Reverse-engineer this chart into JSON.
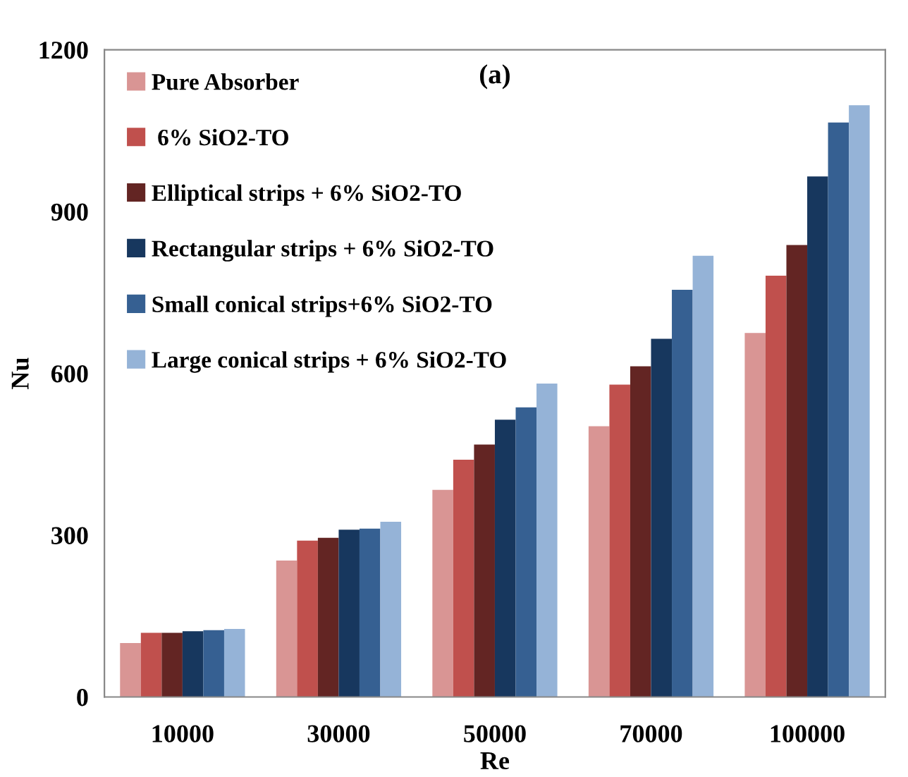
{
  "chart_data": {
    "type": "bar",
    "title": "(a)",
    "xlabel": "Re",
    "ylabel": "Nu",
    "categories": [
      "10000",
      "30000",
      "50000",
      "70000",
      "100000"
    ],
    "series": [
      {
        "name": "Pure Absorber",
        "color": "#d99594",
        "values": [
          100,
          253,
          384,
          502,
          675
        ]
      },
      {
        "name": " 6% SiO2-TO",
        "color": "#c0504d",
        "values": [
          119,
          290,
          440,
          579,
          781
        ]
      },
      {
        "name": "Elliptical strips + 6% SiO2-TO",
        "color": "#632523",
        "values": [
          119,
          295,
          468,
          613,
          838
        ]
      },
      {
        "name": "Rectangular strips + 6% SiO2-TO",
        "color": "#17375e",
        "values": [
          122,
          310,
          514,
          664,
          965
        ]
      },
      {
        "name": "Small conical strips+6% SiO2-TO",
        "color": "#366092",
        "values": [
          124,
          312,
          537,
          755,
          1065
        ]
      },
      {
        "name": "Large conical strips + 6% SiO2-TO",
        "color": "#95b3d7",
        "values": [
          126,
          325,
          581,
          818,
          1097
        ]
      }
    ],
    "ylim": [
      0,
      1200
    ],
    "yticks": [
      0,
      300,
      600,
      900,
      1200
    ],
    "grid": false,
    "legend": "top left"
  }
}
